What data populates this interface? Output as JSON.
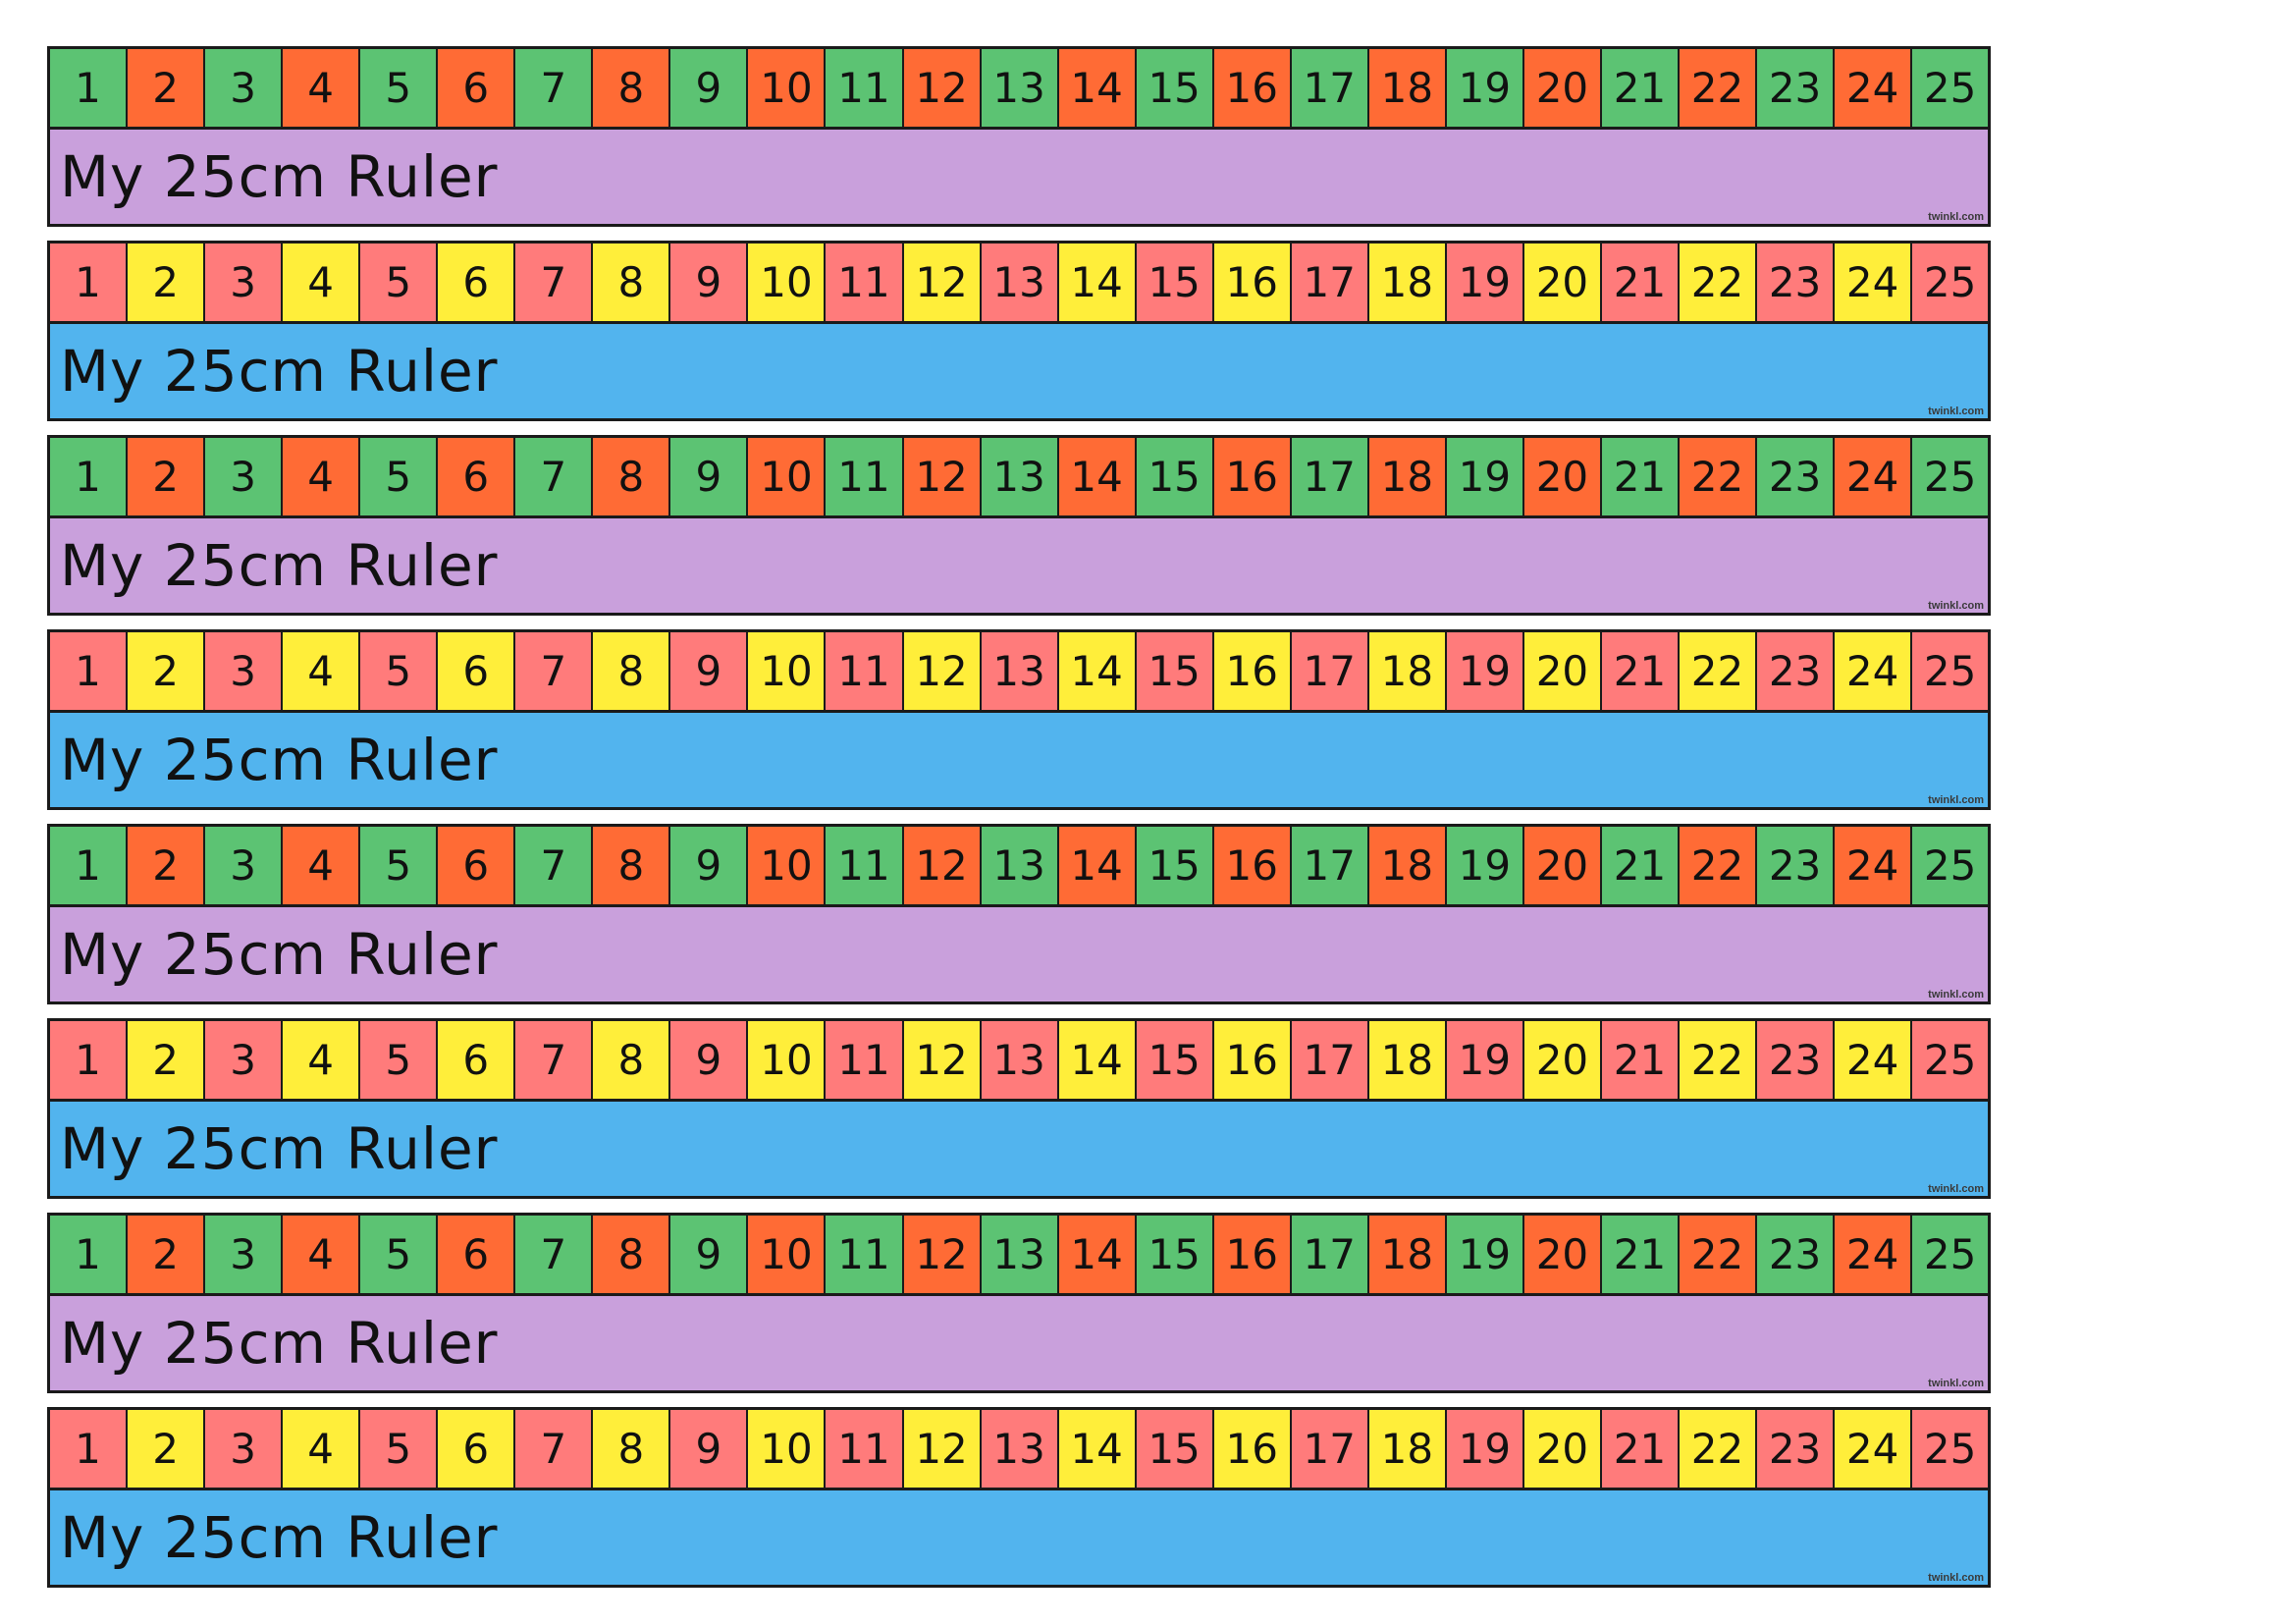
{
  "title": "My 25cm Ruler",
  "brand": "twinkl.com",
  "numbers": [
    "1",
    "2",
    "3",
    "4",
    "5",
    "6",
    "7",
    "8",
    "9",
    "10",
    "11",
    "12",
    "13",
    "14",
    "15",
    "16",
    "17",
    "18",
    "19",
    "20",
    "21",
    "22",
    "23",
    "24",
    "25"
  ],
  "styles": {
    "a": {
      "odd": "#5cc373",
      "even": "#ff6b35",
      "banner": "#c9a0dc"
    },
    "b": {
      "odd": "#ff7b7b",
      "even": "#ffee3a",
      "banner": "#52b4ee"
    }
  },
  "rulers": [
    {
      "style": "a"
    },
    {
      "style": "b"
    },
    {
      "style": "a"
    },
    {
      "style": "b"
    },
    {
      "style": "a"
    },
    {
      "style": "b"
    },
    {
      "style": "a"
    },
    {
      "style": "b"
    }
  ]
}
